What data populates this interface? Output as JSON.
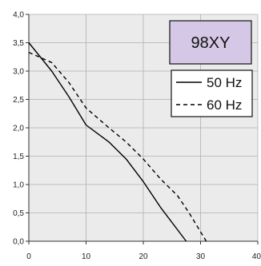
{
  "chart_data": {
    "type": "line",
    "title": "",
    "xlabel": "",
    "ylabel": "",
    "xlim": [
      0,
      40
    ],
    "ylim": [
      0,
      4
    ],
    "x_ticks": [
      "0",
      "10",
      "20",
      "30",
      "40"
    ],
    "y_ticks": [
      "0,0",
      "0,5",
      "1,0",
      "1,5",
      "2,0",
      "2,5",
      "3,0",
      "3,5",
      "4,0"
    ],
    "grid": true,
    "legend_position": "top-right",
    "badge": "98XY",
    "badge_color": "#d5c8e6",
    "series": [
      {
        "name": "50 Hz",
        "style": "solid",
        "color": "#000000",
        "x": [
          0,
          4,
          7,
          10,
          14,
          17,
          20,
          23,
          27.5
        ],
        "y": [
          3.5,
          3.0,
          2.55,
          2.05,
          1.75,
          1.45,
          1.05,
          0.6,
          0.0
        ]
      },
      {
        "name": "60 Hz",
        "style": "dashed",
        "color": "#000000",
        "x": [
          0,
          4,
          7,
          10,
          14,
          17,
          20,
          23,
          26,
          28,
          31
        ],
        "y": [
          3.33,
          3.15,
          2.8,
          2.35,
          2.0,
          1.75,
          1.45,
          1.1,
          0.8,
          0.5,
          0.0
        ]
      }
    ]
  }
}
